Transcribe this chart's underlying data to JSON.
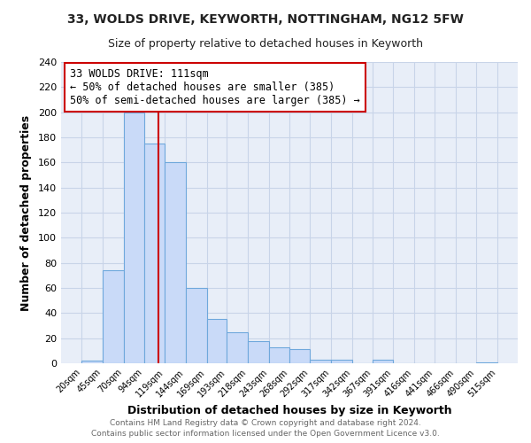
{
  "title_line1": "33, WOLDS DRIVE, KEYWORTH, NOTTINGHAM, NG12 5FW",
  "title_line2": "Size of property relative to detached houses in Keyworth",
  "xlabel": "Distribution of detached houses by size in Keyworth",
  "ylabel": "Number of detached properties",
  "bar_edges": [
    20,
    45,
    70,
    94,
    119,
    144,
    169,
    193,
    218,
    243,
    268,
    292,
    317,
    342,
    367,
    391,
    416,
    441,
    466,
    490,
    515
  ],
  "bar_heights": [
    2,
    74,
    200,
    175,
    160,
    60,
    35,
    25,
    18,
    13,
    11,
    3,
    3,
    0,
    3,
    0,
    0,
    0,
    0,
    1
  ],
  "bar_color": "#c9daf8",
  "bar_edge_color": "#6fa8dc",
  "vline_x": 111,
  "vline_color": "#cc0000",
  "annotation_line1": "33 WOLDS DRIVE: 111sqm",
  "annotation_line2": "← 50% of detached houses are smaller (385)",
  "annotation_line3": "50% of semi-detached houses are larger (385) →",
  "annotation_box_color": "#cc0000",
  "annotation_fill": "#ffffff",
  "ylim": [
    0,
    240
  ],
  "yticks": [
    0,
    20,
    40,
    60,
    80,
    100,
    120,
    140,
    160,
    180,
    200,
    220,
    240
  ],
  "xtick_labels": [
    "20sqm",
    "45sqm",
    "70sqm",
    "94sqm",
    "119sqm",
    "144sqm",
    "169sqm",
    "193sqm",
    "218sqm",
    "243sqm",
    "268sqm",
    "292sqm",
    "317sqm",
    "342sqm",
    "367sqm",
    "391sqm",
    "416sqm",
    "441sqm",
    "466sqm",
    "490sqm",
    "515sqm"
  ],
  "footer_line1": "Contains HM Land Registry data © Crown copyright and database right 2024.",
  "footer_line2": "Contains public sector information licensed under the Open Government Licence v3.0.",
  "bg_color": "#ffffff",
  "plot_bg_color": "#e8eef8",
  "grid_color": "#c8d4e8",
  "title1_fontsize": 10,
  "title2_fontsize": 9,
  "xlabel_fontsize": 9,
  "ylabel_fontsize": 9,
  "footer_fontsize": 6.5,
  "ann_fontsize": 8.5
}
